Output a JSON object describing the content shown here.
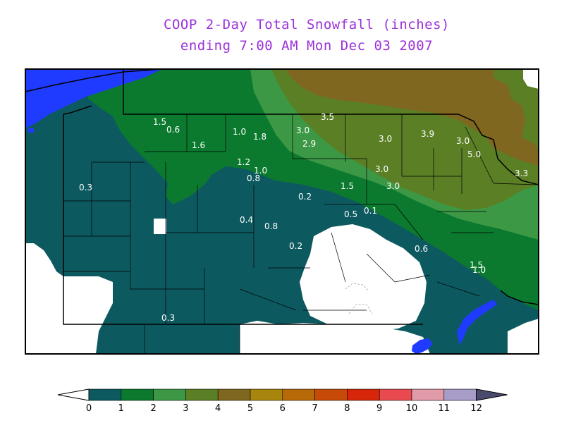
{
  "title": {
    "line1": "COOP 2-Day Total Snowfall (inches)",
    "line2": "ending 7:00 AM Mon Dec 03 2007"
  },
  "colors": {
    "water": "#1f3bff",
    "c0_1": "#0c5a60",
    "c1_2": "#0b7a2e",
    "c2_3": "#3d9846",
    "c3_4": "#5b7f25",
    "c4_5": "#80671f",
    "none": "#ffffff"
  },
  "station_values": [
    {
      "text": "1.5"
    },
    {
      "text": "0.6"
    },
    {
      "text": "1.6"
    },
    {
      "text": "1.0"
    },
    {
      "text": "1.8"
    },
    {
      "text": "3.5"
    },
    {
      "text": "3.0"
    },
    {
      "text": "2.9"
    },
    {
      "text": "3.0"
    },
    {
      "text": "3.9"
    },
    {
      "text": "3.0"
    },
    {
      "text": "5.0"
    },
    {
      "text": "3.3"
    },
    {
      "text": "1.2"
    },
    {
      "text": "1.0"
    },
    {
      "text": "0.8"
    },
    {
      "text": "3.0"
    },
    {
      "text": "3.0"
    },
    {
      "text": "1.5"
    },
    {
      "text": "0.3"
    },
    {
      "text": "0.2"
    },
    {
      "text": "0.5"
    },
    {
      "text": "0.1"
    },
    {
      "text": "0.4"
    },
    {
      "text": "0.8"
    },
    {
      "text": "0.2"
    },
    {
      "text": "0.6"
    },
    {
      "text": "1.5"
    },
    {
      "text": "1.0"
    },
    {
      "text": "0.3"
    }
  ],
  "legend": {
    "ticks": [
      "0",
      "1",
      "2",
      "3",
      "4",
      "5",
      "6",
      "7",
      "8",
      "9",
      "10",
      "11",
      "12"
    ],
    "colors": [
      "#0c5a60",
      "#0b7a2e",
      "#3d9846",
      "#5b7f25",
      "#80671f",
      "#a8860e",
      "#b86a08",
      "#c84a08",
      "#d8260a",
      "#e84a50",
      "#e09aa8",
      "#a89cc8"
    ],
    "low_color": "#ffffff",
    "high_color": "#4a4a6e"
  }
}
